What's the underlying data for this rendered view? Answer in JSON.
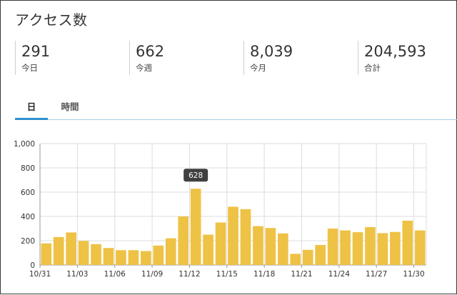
{
  "header": {
    "title": "アクセス数"
  },
  "stats": [
    {
      "value": "291",
      "label": "今日"
    },
    {
      "value": "662",
      "label": "今週"
    },
    {
      "value": "8,039",
      "label": "今月"
    },
    {
      "value": "204,593",
      "label": "合計"
    }
  ],
  "tabs": [
    {
      "label": "日",
      "active": true
    },
    {
      "label": "時間",
      "active": false
    }
  ],
  "colors": {
    "bar": "#eec245",
    "tab_accent": "#2f8fcf",
    "tooltip_bg": "#404040"
  },
  "chart_data": {
    "type": "bar",
    "title": "",
    "xlabel": "",
    "ylabel": "",
    "ylim": [
      0,
      1000
    ],
    "y_ticks": [
      "0",
      "200",
      "400",
      "600",
      "800",
      "1,000"
    ],
    "grid": true,
    "categories": [
      "10/31",
      "11/01",
      "11/02",
      "11/03",
      "11/04",
      "11/05",
      "11/06",
      "11/07",
      "11/08",
      "11/09",
      "11/10",
      "11/11",
      "11/12",
      "11/13",
      "11/14",
      "11/15",
      "11/16",
      "11/17",
      "11/18",
      "11/19",
      "11/20",
      "11/21",
      "11/22",
      "11/23",
      "11/24",
      "11/25",
      "11/26",
      "11/27",
      "11/28",
      "11/29",
      "11/30"
    ],
    "x_tick_labels": [
      "10/31",
      "11/03",
      "11/06",
      "11/09",
      "11/12",
      "11/15",
      "11/18",
      "11/21",
      "11/24",
      "11/27",
      "11/30"
    ],
    "values": [
      178,
      230,
      268,
      198,
      172,
      140,
      122,
      122,
      115,
      160,
      220,
      400,
      628,
      250,
      350,
      480,
      460,
      320,
      305,
      260,
      92,
      125,
      165,
      300,
      285,
      270,
      312,
      262,
      272,
      365,
      285
    ],
    "tooltip": {
      "category": "11/12",
      "text": "628"
    }
  }
}
